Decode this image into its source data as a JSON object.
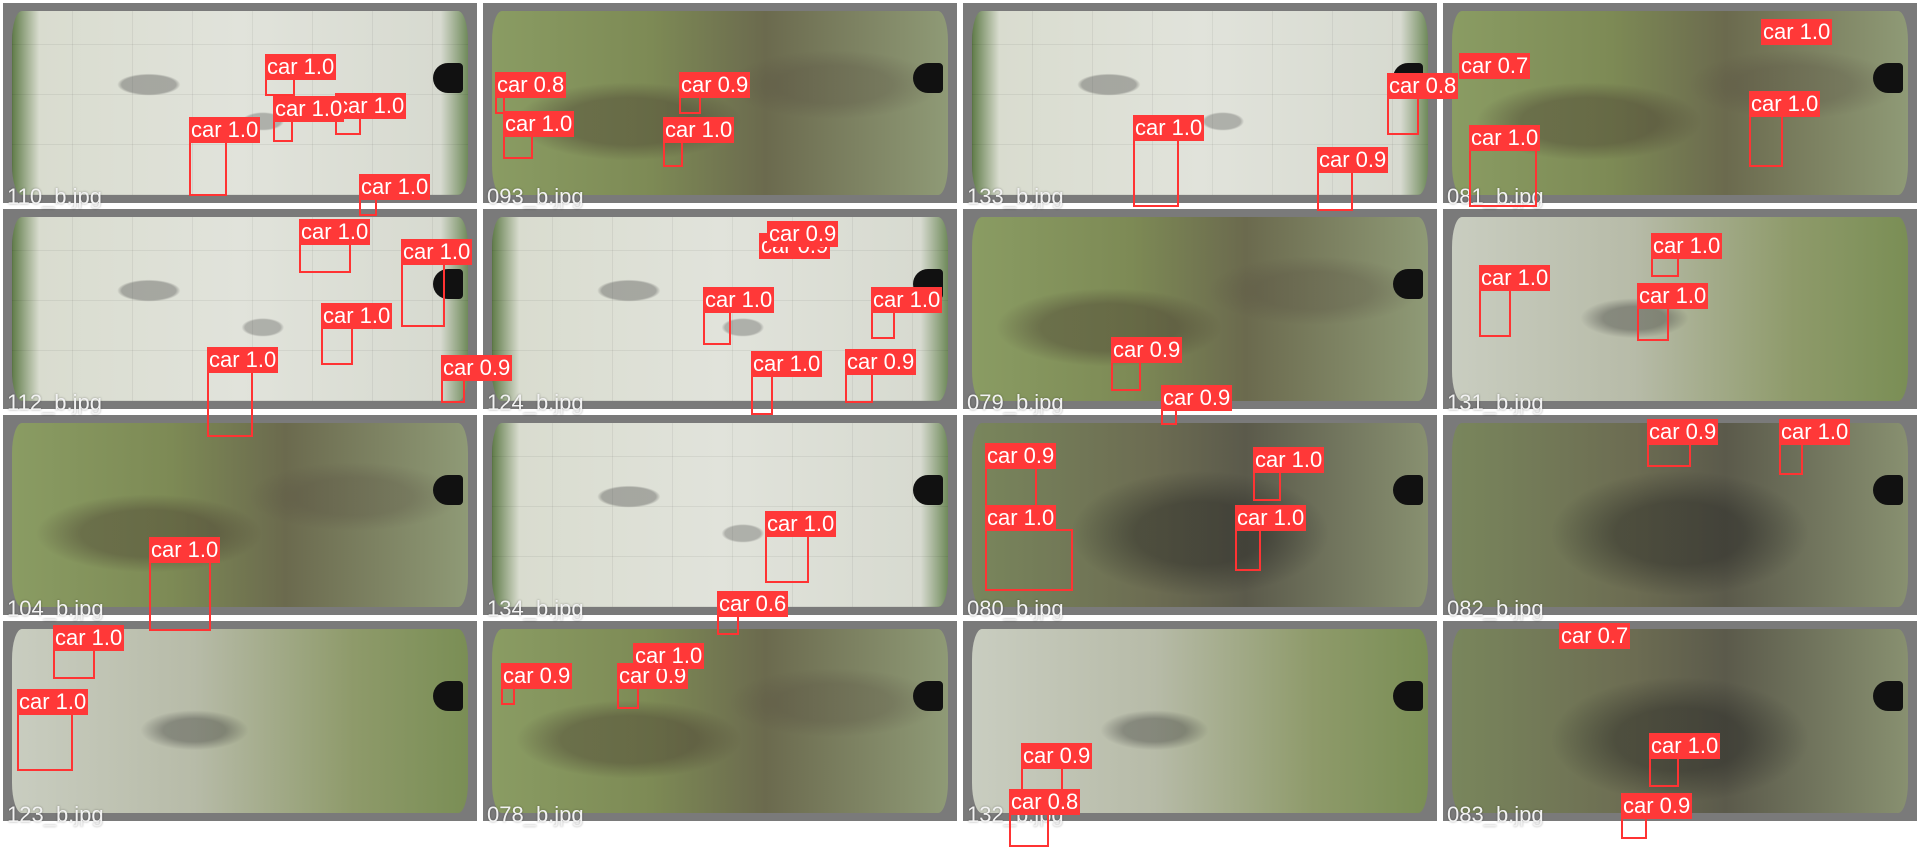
{
  "label_color": "#ff3838",
  "tiles": [
    {
      "filename": "110_b.jpg",
      "scene": "concrete",
      "detections": [
        {
          "label": "car 1.0"
        },
        {
          "label": "car 1.0"
        },
        {
          "label": "car 1.0"
        },
        {
          "label": "car 1.0"
        },
        {
          "label": "car 1.0"
        }
      ]
    },
    {
      "filename": "093_b.jpg",
      "scene": "grass",
      "detections": [
        {
          "label": "car 0.8"
        },
        {
          "label": "car 0.9"
        },
        {
          "label": "car 1.0"
        },
        {
          "label": "car 1.0"
        }
      ]
    },
    {
      "filename": "133_b.jpg",
      "scene": "concrete",
      "detections": [
        {
          "label": "car 0.8"
        },
        {
          "label": "car 1.0"
        },
        {
          "label": "car 0.9"
        }
      ]
    },
    {
      "filename": "081_b.jpg",
      "scene": "grass",
      "detections": [
        {
          "label": "car 1.0"
        },
        {
          "label": "car 0.7"
        },
        {
          "label": "car 1.0"
        },
        {
          "label": "car 1.0"
        }
      ]
    },
    {
      "filename": "112_b.jpg",
      "scene": "concrete",
      "detections": [
        {
          "label": "car 1.0"
        },
        {
          "label": "car 1.0"
        },
        {
          "label": "car 1.0"
        },
        {
          "label": "car 1.0"
        },
        {
          "label": "car 0.9"
        }
      ]
    },
    {
      "filename": "124_b.jpg",
      "scene": "concrete",
      "detections": [
        {
          "label": "car 0.9"
        },
        {
          "label": "car 1.0"
        },
        {
          "label": "car 0.9"
        },
        {
          "label": "car 1.0"
        },
        {
          "label": "car 1.0"
        },
        {
          "label": "car 0.9"
        }
      ]
    },
    {
      "filename": "079_b.jpg",
      "scene": "grass",
      "detections": [
        {
          "label": "car 0.9"
        },
        {
          "label": "car 0.9"
        }
      ]
    },
    {
      "filename": "131_b.jpg",
      "scene": "mixed",
      "detections": [
        {
          "label": "car 1.0"
        },
        {
          "label": "car 1.0"
        },
        {
          "label": "car 1.0"
        }
      ]
    },
    {
      "filename": "104_b.jpg",
      "scene": "grass",
      "detections": [
        {
          "label": "car 1.0"
        }
      ]
    },
    {
      "filename": "134_b.jpg",
      "scene": "concrete",
      "detections": [
        {
          "label": "car 1.0"
        },
        {
          "label": "car 0.6"
        }
      ]
    },
    {
      "filename": "080_b.jpg",
      "scene": "dark",
      "detections": [
        {
          "label": "car 0.9"
        },
        {
          "label": "car 1.0"
        },
        {
          "label": "car 1.0"
        },
        {
          "label": "car 1.0"
        }
      ]
    },
    {
      "filename": "082_b.jpg",
      "scene": "dark",
      "detections": [
        {
          "label": "car 0.9"
        },
        {
          "label": "car 1.0"
        }
      ]
    },
    {
      "filename": "123_b.jpg",
      "scene": "mixed",
      "detections": [
        {
          "label": "car 1.0"
        },
        {
          "label": "car 1.0"
        }
      ]
    },
    {
      "filename": "078_b.jpg",
      "scene": "grass",
      "detections": [
        {
          "label": "car 0.9"
        },
        {
          "label": "car 0.9"
        },
        {
          "label": "car 1.0"
        }
      ]
    },
    {
      "filename": "132_b.jpg",
      "scene": "mixed",
      "detections": [
        {
          "label": "car 0.9"
        },
        {
          "label": "car 0.8"
        }
      ]
    },
    {
      "filename": "083_b.jpg",
      "scene": "dark",
      "detections": [
        {
          "label": "car 0.7"
        },
        {
          "label": "car 1.0"
        },
        {
          "label": "car 0.9"
        }
      ]
    }
  ]
}
